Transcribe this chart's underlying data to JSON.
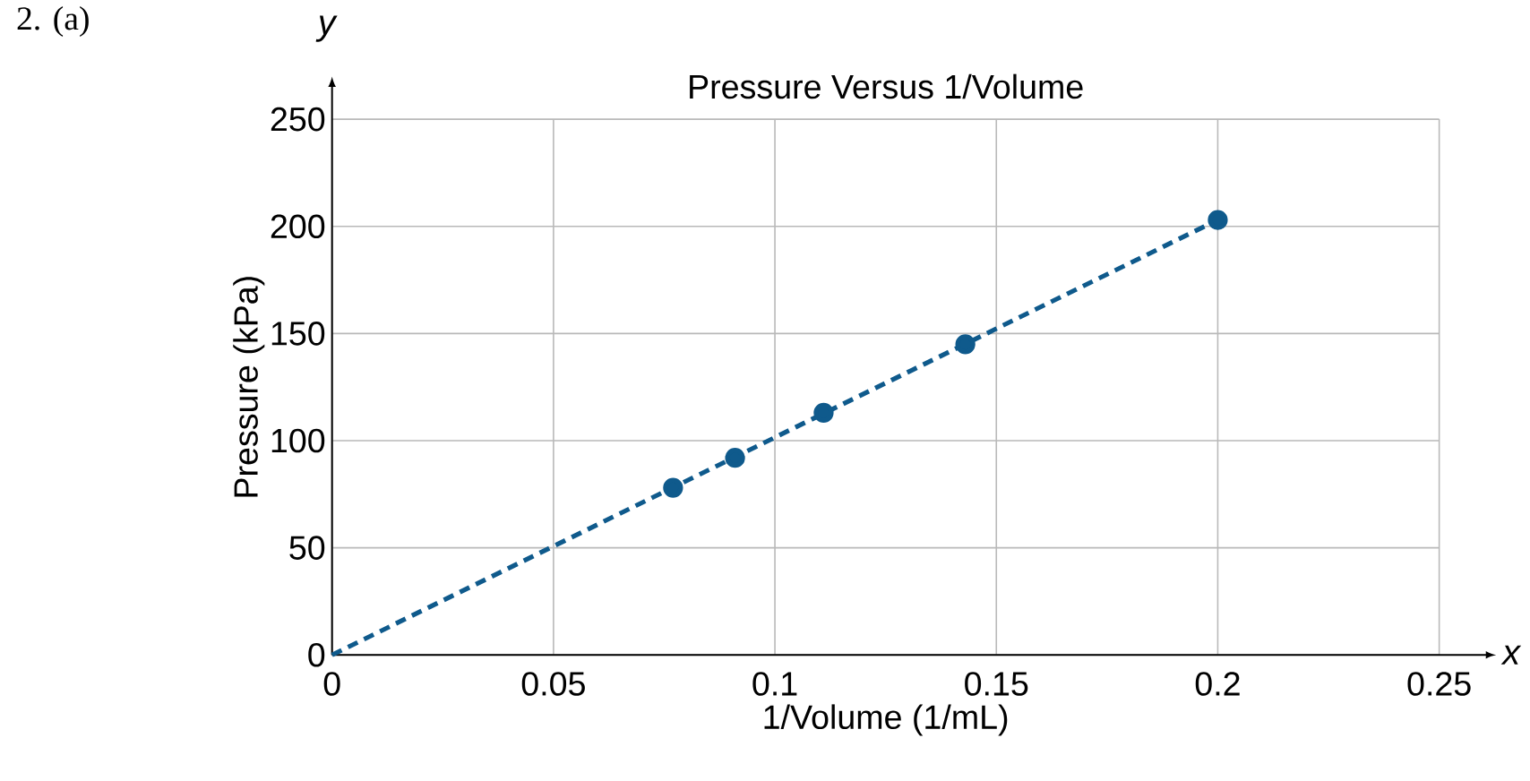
{
  "chart_data": {
    "type": "scatter",
    "title": "Pressure Versus 1/Volume",
    "xlabel": "1/Volume (1/mL)",
    "ylabel": "Pressure (kPa)",
    "annotations": [
      "2. (a)",
      "y",
      "x"
    ],
    "xlim": [
      0,
      0.25
    ],
    "ylim": [
      0,
      250
    ],
    "xticks": [
      0,
      0.05,
      0.1,
      0.15,
      0.2,
      0.25
    ],
    "yticks": [
      0,
      50,
      100,
      150,
      200,
      250
    ],
    "grid": true,
    "series": [
      {
        "color": "#0f5a8c",
        "marker": "circle",
        "x": [
          0.077,
          0.091,
          0.111,
          0.143,
          0.2
        ],
        "values": [
          78,
          92,
          113,
          145,
          203
        ]
      },
      {
        "type": "line",
        "color": "#0f5a8c",
        "marker": "none",
        "line_style": "dashed",
        "x": [
          0,
          0.2
        ],
        "values": [
          0,
          203
        ]
      }
    ]
  }
}
